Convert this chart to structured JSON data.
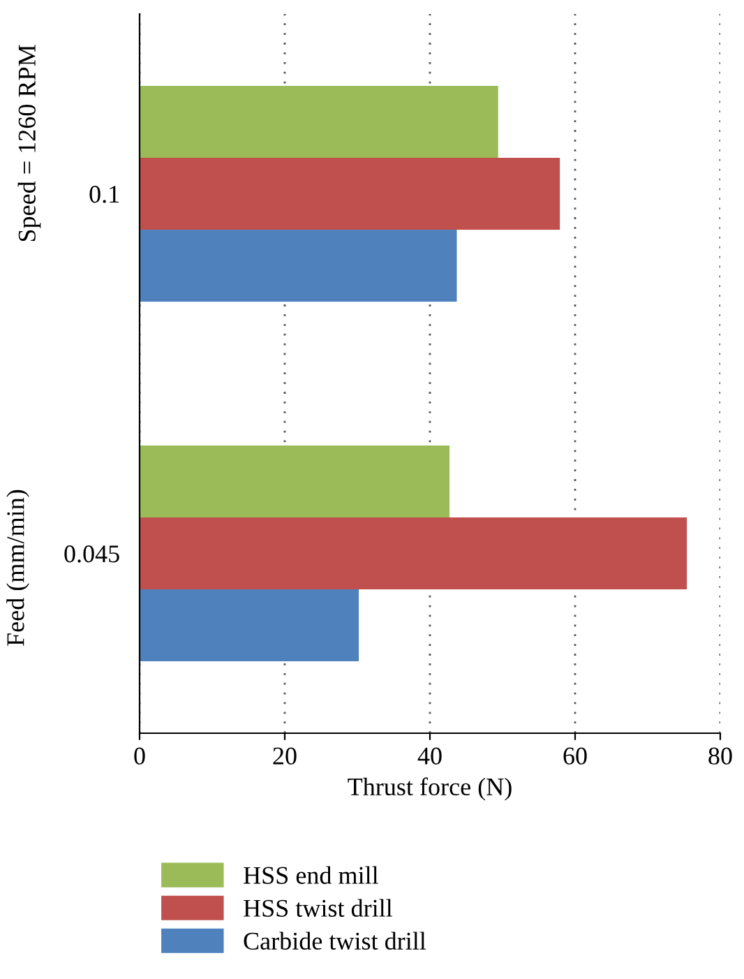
{
  "chart_data": {
    "type": "bar",
    "orientation": "horizontal",
    "xlabel": "Thrust force (N)",
    "ylabel": "Feed (mm/min)",
    "annotations": [
      "Speed = 1260 RPM"
    ],
    "categories": [
      "0.1",
      "0.045"
    ],
    "series": [
      {
        "name": "HSS end mill",
        "color": "#9bbb59",
        "values": [
          49.4,
          42.7
        ]
      },
      {
        "name": "HSS twist drill",
        "color": "#c0504d",
        "values": [
          57.9,
          75.4
        ]
      },
      {
        "name": "Carbide twist drill",
        "color": "#4f81bd",
        "values": [
          43.7,
          30.2
        ]
      }
    ],
    "xlim": [
      0,
      80
    ],
    "xticks": [
      0,
      20,
      40,
      60,
      80
    ],
    "grid": "x",
    "legend": "bottom"
  }
}
